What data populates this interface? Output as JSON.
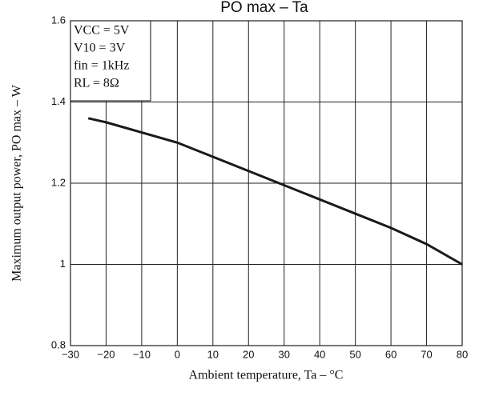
{
  "chart_data": {
    "type": "line",
    "title": "PO max – Ta",
    "x_label": "Ambient temperature, Ta – °C",
    "y_label": "Maximum output power, PO max – W",
    "annotations": [
      "VCC = 5V",
      "V10 = 3V",
      "fin = 1kHz",
      "RL = 8Ω"
    ],
    "x": [
      -25,
      -20,
      -10,
      0,
      10,
      20,
      30,
      40,
      50,
      60,
      70,
      80
    ],
    "series": [
      {
        "color": "#1a1a1a",
        "values": [
          1.36,
          1.35,
          1.325,
          1.3,
          1.265,
          1.23,
          1.195,
          1.16,
          1.125,
          1.09,
          1.05,
          1.0
        ]
      }
    ],
    "xlim": [
      -30,
      80
    ],
    "xticks": [
      {
        "value": -30,
        "label": "−30"
      },
      {
        "value": -20,
        "label": "−20"
      },
      {
        "value": -10,
        "label": "−10"
      },
      0,
      10,
      20,
      30,
      40,
      50,
      60,
      70,
      80
    ],
    "ylim": [
      0.8,
      1.6
    ],
    "yticks": [
      0.8,
      1,
      1.2,
      1.4,
      1.6
    ],
    "grid": true
  }
}
